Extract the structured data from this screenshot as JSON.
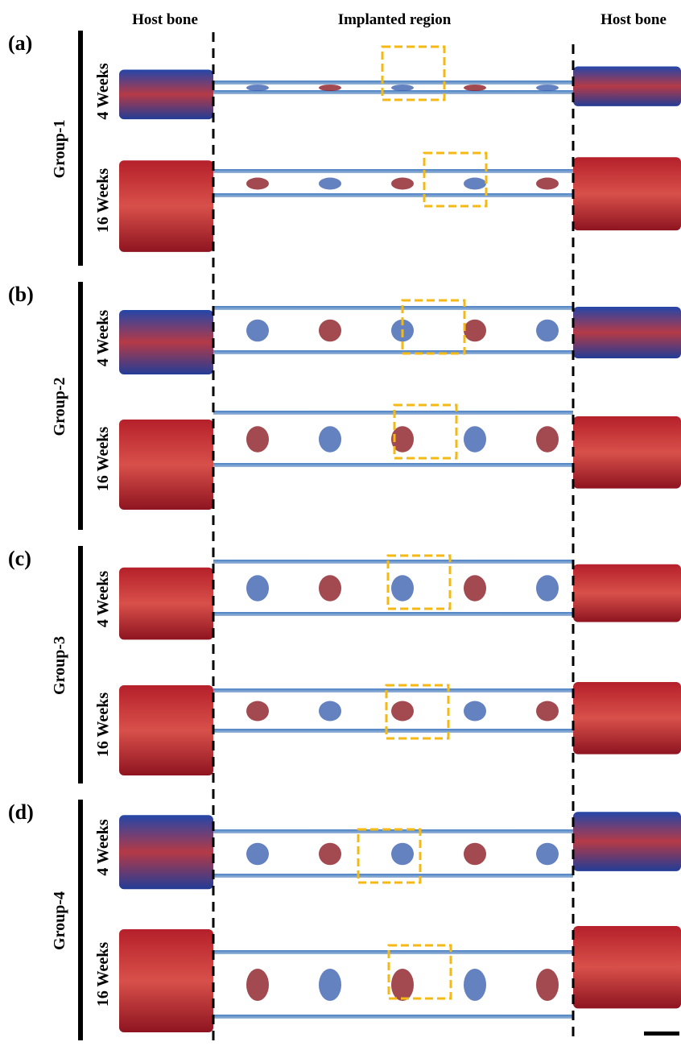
{
  "header": {
    "columns": [
      "Host bone",
      "Implanted region",
      "Host bone"
    ]
  },
  "panels": [
    {
      "label": "(a)",
      "group": "Group-1",
      "rows": [
        "4 Weeks",
        "16 Weeks"
      ]
    },
    {
      "label": "(b)",
      "group": "Group-2",
      "rows": [
        "4 Weeks",
        "16 Weeks"
      ]
    },
    {
      "label": "(c)",
      "group": "Group-3",
      "rows": [
        "4 Weeks",
        "16 Weeks"
      ]
    },
    {
      "label": "(d)",
      "group": "Group-4",
      "rows": [
        "4 Weeks",
        "16 Weeks"
      ]
    }
  ]
}
